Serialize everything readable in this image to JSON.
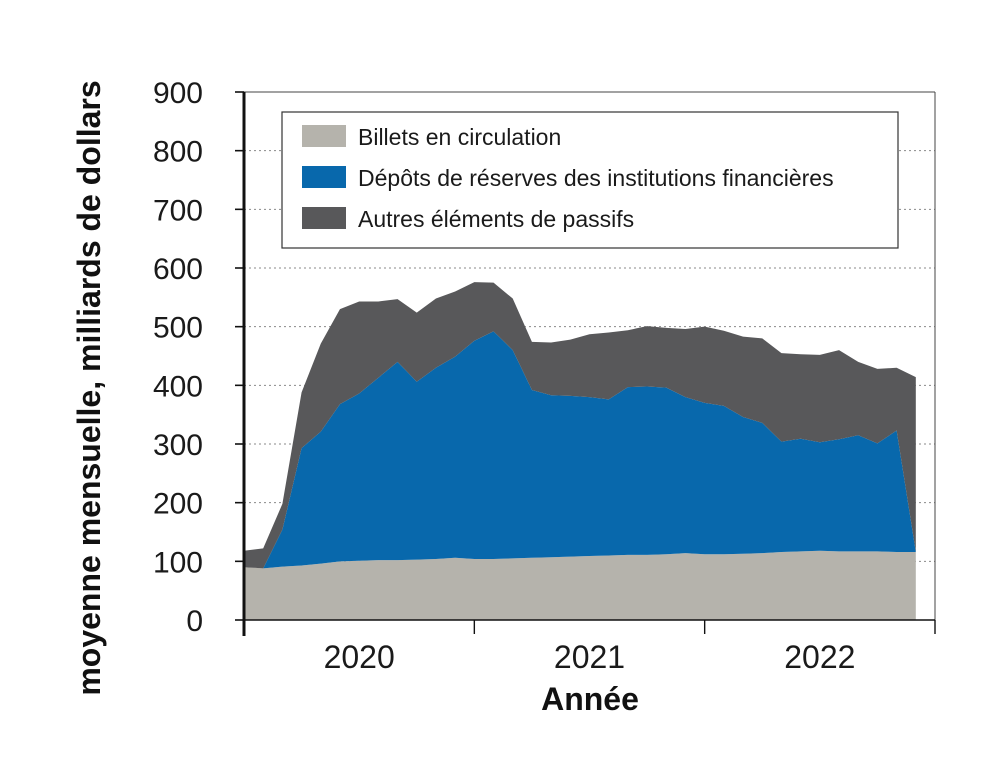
{
  "chart_data": {
    "type": "area",
    "stacked": true,
    "ylabel": "moyenne mensuelle, milliards de dollars",
    "xlabel": "Année",
    "ylim": [
      0,
      900
    ],
    "yticks": [
      0,
      100,
      200,
      300,
      400,
      500,
      600,
      700,
      800,
      900
    ],
    "year_labels": [
      "2020",
      "2021",
      "2022"
    ],
    "x_range": [
      "2020-01",
      "2023-01"
    ],
    "grid": "horizontal dotted",
    "legend_position": "top",
    "x": [
      "2020-01",
      "2020-02",
      "2020-03",
      "2020-04",
      "2020-05",
      "2020-06",
      "2020-07",
      "2020-08",
      "2020-09",
      "2020-10",
      "2020-11",
      "2020-12",
      "2021-01",
      "2021-02",
      "2021-03",
      "2021-04",
      "2021-05",
      "2021-06",
      "2021-07",
      "2021-08",
      "2021-09",
      "2021-10",
      "2021-11",
      "2021-12",
      "2022-01",
      "2022-02",
      "2022-03",
      "2022-04",
      "2022-05",
      "2022-06",
      "2022-07",
      "2022-08",
      "2022-09",
      "2022-10",
      "2022-11",
      "2022-12"
    ],
    "series": [
      {
        "name": "Billets en circulation",
        "color": "#b5b3ac",
        "values": [
          90,
          88,
          91,
          93,
          96,
          100,
          101,
          102,
          102,
          103,
          104,
          106,
          104,
          104,
          105,
          106,
          107,
          108,
          109,
          110,
          111,
          111,
          112,
          114,
          112,
          112,
          113,
          114,
          116,
          117,
          118,
          117,
          117,
          117,
          116,
          116
        ]
      },
      {
        "name": "Dépôts de réserves des institutions financières",
        "color": "#0868ac",
        "values": [
          0,
          0,
          63,
          200,
          225,
          268,
          285,
          311,
          338,
          303,
          326,
          343,
          372,
          388,
          355,
          286,
          276,
          274,
          271,
          266,
          286,
          287,
          284,
          266,
          258,
          253,
          233,
          222,
          188,
          192,
          185,
          191,
          198,
          184,
          207,
          0
        ]
      },
      {
        "name": "Autres éléments de passifs",
        "color": "#58585a",
        "values": [
          28,
          34,
          44,
          95,
          150,
          162,
          157,
          130,
          107,
          118,
          118,
          111,
          100,
          83,
          88,
          82,
          90,
          96,
          107,
          114,
          97,
          103,
          102,
          116,
          130,
          128,
          137,
          144,
          151,
          144,
          149,
          152,
          125,
          127,
          107,
          298
        ]
      }
    ]
  }
}
